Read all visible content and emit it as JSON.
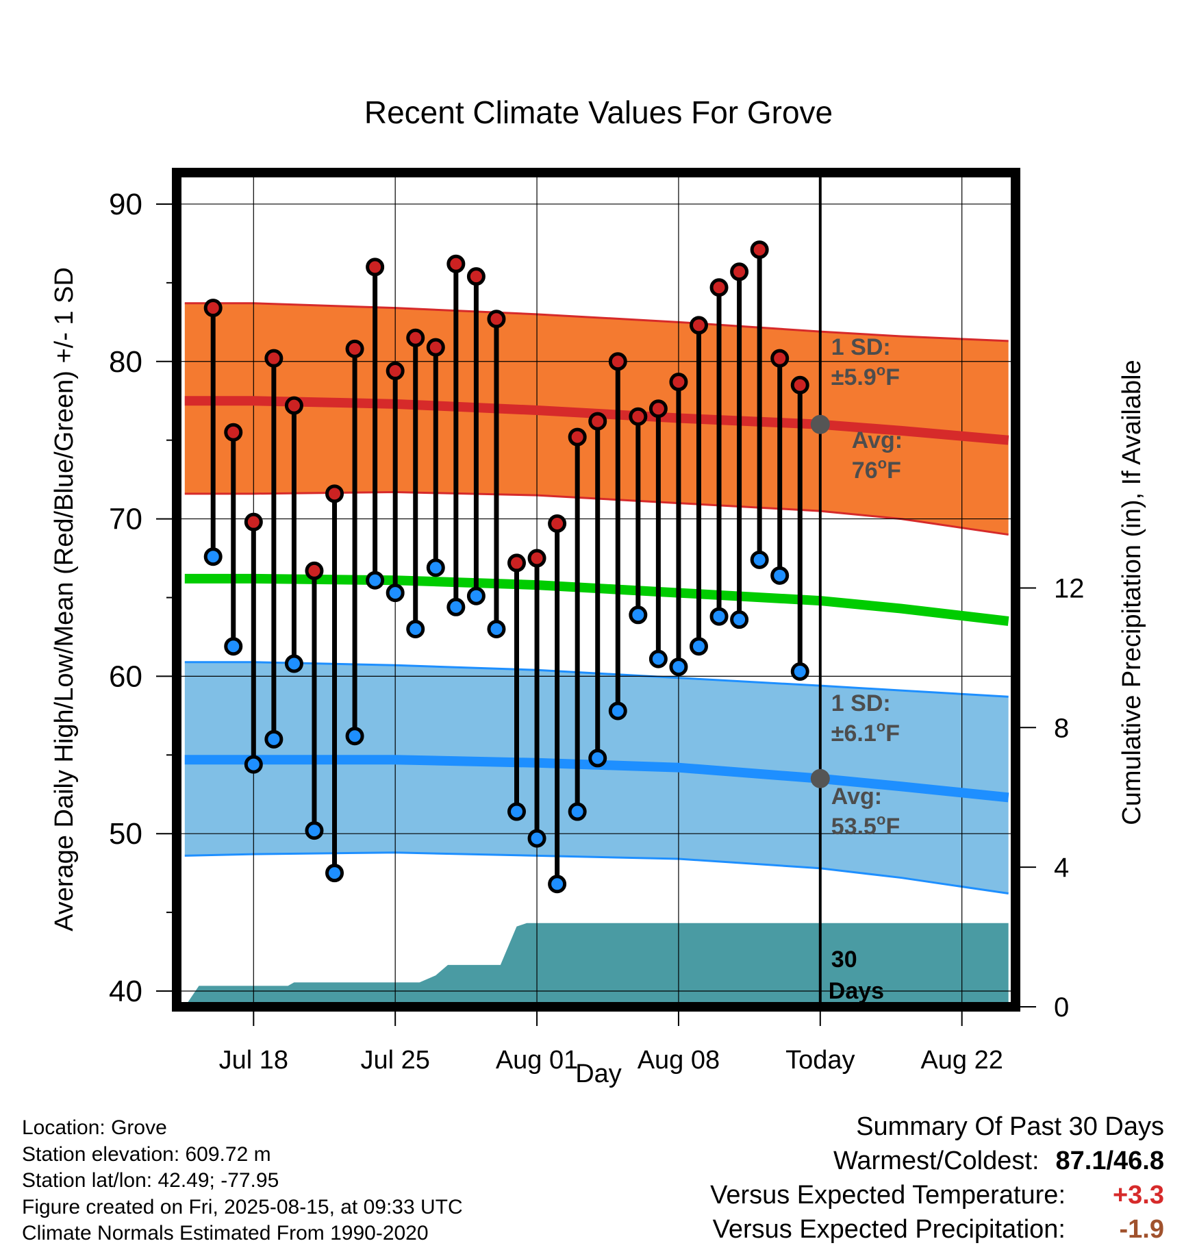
{
  "chart_data": {
    "type": "line",
    "title": "Recent Climate Values For Grove",
    "xlabel": "Day",
    "ylabel": "Average Daily High/Low/Mean (Red/Blue/Green) +/- 1 SD",
    "y2label": "Cumulative Precipitation (in), If Available",
    "ylim": [
      39,
      92
    ],
    "y2lim": [
      0,
      23.9
    ],
    "y_ticks": [
      "40",
      "50",
      "60",
      "70",
      "80",
      "90"
    ],
    "y2_ticks": [
      "0",
      "4",
      "8",
      "12"
    ],
    "x_ticks": [
      "Jul 18",
      "Jul 25",
      "Aug 01",
      "Aug 08",
      "Today",
      "Aug 22"
    ],
    "x_tick_days": [
      18,
      25,
      32,
      39,
      46,
      53
    ],
    "x_range_days": [
      14.2,
      55.65
    ],
    "today_day": 46,
    "days": [
      16,
      17,
      18,
      19,
      20,
      21,
      22,
      23,
      24,
      25,
      26,
      27,
      28,
      29,
      30,
      31,
      32,
      33,
      34,
      35,
      36,
      37,
      38,
      39,
      40,
      41,
      42,
      43,
      44,
      45
    ],
    "highs": [
      83.4,
      75.5,
      69.8,
      80.2,
      77.2,
      66.7,
      71.6,
      80.8,
      86.0,
      79.4,
      81.5,
      80.9,
      86.2,
      85.4,
      82.7,
      67.2,
      67.5,
      69.7,
      75.2,
      76.2,
      80.0,
      76.5,
      77.0,
      78.7,
      82.3,
      84.7,
      85.7,
      87.1,
      80.2,
      78.5
    ],
    "lows": [
      67.6,
      61.9,
      54.4,
      56.0,
      60.8,
      50.2,
      47.5,
      56.2,
      66.1,
      65.3,
      63.0,
      66.9,
      64.4,
      65.1,
      63.0,
      51.4,
      49.7,
      46.8,
      51.4,
      54.8,
      57.8,
      63.9,
      61.1,
      60.6,
      61.9,
      63.8,
      63.6,
      67.4,
      66.4,
      60.3
    ],
    "normals": {
      "x": [
        14.6,
        18,
        25,
        32,
        39,
        46,
        50,
        55.3
      ],
      "high_avg": [
        77.5,
        77.5,
        77.3,
        76.9,
        76.4,
        76.0,
        75.6,
        75.0
      ],
      "high_sd_upper": [
        83.7,
        83.7,
        83.4,
        83.0,
        82.5,
        81.9,
        81.6,
        81.3
      ],
      "high_sd_lower": [
        71.6,
        71.6,
        71.7,
        71.5,
        71.0,
        70.5,
        70.0,
        69.0
      ],
      "mean": [
        66.2,
        66.2,
        66.1,
        65.8,
        65.3,
        64.8,
        64.3,
        63.5
      ],
      "low_avg": [
        54.7,
        54.7,
        54.7,
        54.5,
        54.2,
        53.5,
        53.0,
        52.3
      ],
      "low_sd_upper": [
        60.9,
        60.9,
        60.7,
        60.4,
        59.9,
        59.4,
        59.1,
        58.7
      ],
      "low_sd_lower": [
        48.6,
        48.7,
        48.8,
        48.6,
        48.4,
        47.8,
        47.2,
        46.2
      ]
    },
    "precip": {
      "x": [
        14.6,
        15.3,
        16,
        19.7,
        20,
        24,
        26.2,
        27,
        27.6,
        29,
        30.2,
        31,
        31.5,
        32,
        33,
        35,
        40,
        44,
        46,
        55.3
      ],
      "values": [
        0,
        0.6,
        0.6,
        0.6,
        0.7,
        0.7,
        0.7,
        0.9,
        1.2,
        1.2,
        1.2,
        2.3,
        2.4,
        2.4,
        2.4,
        2.4,
        2.4,
        2.4,
        2.4,
        2.4
      ]
    },
    "annotations": {
      "high_sd_1": "1 SD:",
      "high_sd_2": "±5.9",
      "high_sd_unit": "F",
      "high_avg_1": "Avg:",
      "high_avg_2": "76",
      "high_avg_unit": "F",
      "low_sd_1": "1 SD:",
      "low_sd_2": "±6.1",
      "low_sd_unit": "F",
      "low_avg_1": "Avg:",
      "low_avg_2": "53.5",
      "low_avg_unit": "F",
      "degree": "o",
      "days_1": "30",
      "days_2": "Days"
    },
    "colors": {
      "high_band": "#f47a30",
      "high_line": "#d62a2a",
      "low_band": "#80bfe6",
      "low_line": "#1e8fff",
      "mean_line": "#00cc00",
      "precip": "#4a9ba3",
      "high_marker": "#cc2222",
      "low_marker": "#1e8fff",
      "annotation": "#4d4d4d"
    }
  },
  "footer": {
    "location": "Location: Grove",
    "elevation": "Station elevation: 609.72 m",
    "latlon": "Station lat/lon: 42.49; -77.95",
    "created": "Figure created on Fri, 2025-08-15, at 09:33 UTC",
    "normals": "Climate Normals Estimated From 1990-2020"
  },
  "summary": {
    "title": "Summary Of Past 30 Days",
    "warm_cold_label": "Warmest/Coldest:",
    "warm_cold_value": "87.1/46.8",
    "temp_label": "Versus Expected Temperature:",
    "temp_value": "+3.3",
    "temp_color": "#d62a2a",
    "precip_label": "Versus Expected Precipitation:",
    "precip_value": "-1.9",
    "precip_color": "#a0522d"
  }
}
